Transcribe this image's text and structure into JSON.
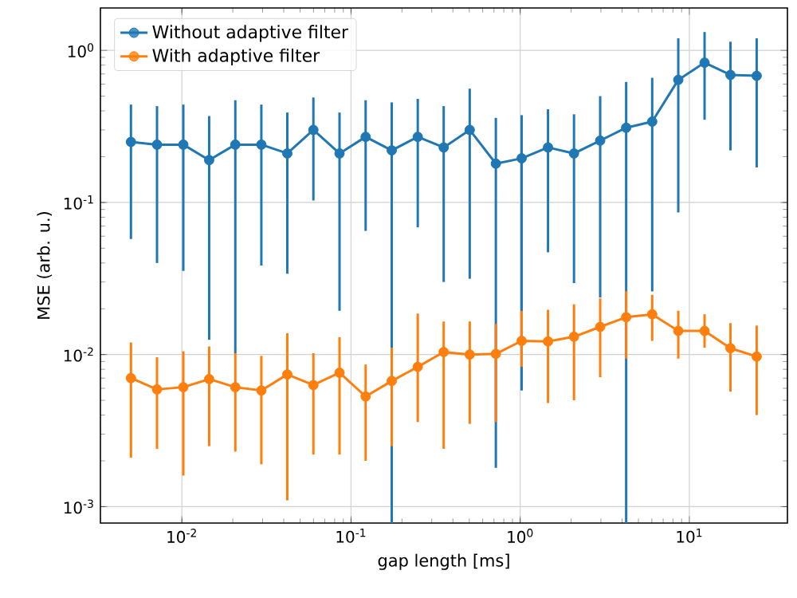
{
  "chart_data": {
    "type": "line",
    "xlabel": "gap length [ms]",
    "ylabel": "MSE (arb. u.)",
    "log": "xy",
    "grid": true,
    "legend": "top left",
    "marker": "circle",
    "line_style": "solid",
    "xlim": [
      0.0033,
      38
    ],
    "ylim": [
      0.00078,
      1.9
    ],
    "xticks": [
      {
        "value": 0.01,
        "label": "10$^{-2}$"
      },
      {
        "value": 0.1,
        "label": "10$^{-1}$"
      },
      {
        "value": 1,
        "label": "10$^{0}$"
      },
      {
        "value": 10,
        "label": "10$^{1}$"
      }
    ],
    "yticks": [
      {
        "value": 0.001,
        "label": "10$^{-3}$"
      },
      {
        "value": 0.01,
        "label": "10$^{-2}$"
      },
      {
        "value": 0.1,
        "label": "10$^{-1}$"
      },
      {
        "value": 1,
        "label": "10$^{0}$"
      }
    ],
    "x": [
      0.005,
      0.00713,
      0.0102,
      0.0145,
      0.0207,
      0.0295,
      0.042,
      0.0599,
      0.0855,
      0.122,
      0.174,
      0.248,
      0.353,
      0.503,
      0.718,
      1.02,
      1.46,
      2.08,
      2.97,
      4.23,
      6.03,
      8.6,
      12.3,
      17.5,
      25.0
    ],
    "series": [
      {
        "name": "Without adaptive filter",
        "color": "#1f77b4",
        "values": [
          0.25,
          0.24,
          0.24,
          0.19,
          0.24,
          0.24,
          0.21,
          0.3,
          0.21,
          0.27,
          0.22,
          0.27,
          0.23,
          0.3,
          0.18,
          0.195,
          0.23,
          0.21,
          0.255,
          0.31,
          0.34,
          0.64,
          0.83,
          0.69,
          0.68
        ],
        "errors": [
          [
            0.0575,
            0.44
          ],
          [
            0.04,
            0.43
          ],
          [
            0.0355,
            0.44
          ],
          [
            0.0125,
            0.37
          ],
          [
            0.0102,
            0.47
          ],
          [
            0.0385,
            0.44
          ],
          [
            0.034,
            0.39
          ],
          [
            0.103,
            0.49
          ],
          [
            0.0194,
            0.39
          ],
          [
            0.065,
            0.47
          ],
          [
            0.00078,
            0.455
          ],
          [
            0.0686,
            0.48
          ],
          [
            0.03,
            0.43
          ],
          [
            0.0315,
            0.56
          ],
          [
            0.0018,
            0.36
          ],
          [
            0.0058,
            0.375
          ],
          [
            0.047,
            0.41
          ],
          [
            0.0295,
            0.38
          ],
          [
            0.0237,
            0.5
          ],
          [
            0.00078,
            0.62
          ],
          [
            0.026,
            0.66
          ],
          [
            0.086,
            1.2
          ],
          [
            0.35,
            1.32
          ],
          [
            0.22,
            1.14
          ],
          [
            0.17,
            1.2
          ]
        ]
      },
      {
        "name": "With adaptive filter",
        "color": "#ff7f0e",
        "values": [
          0.007,
          0.0059,
          0.0061,
          0.0069,
          0.0061,
          0.0058,
          0.0074,
          0.0063,
          0.0076,
          0.0053,
          0.0067,
          0.0083,
          0.0104,
          0.01,
          0.0101,
          0.0123,
          0.0122,
          0.0131,
          0.0152,
          0.0176,
          0.0184,
          0.0143,
          0.0143,
          0.011,
          0.0097
        ],
        "errors": [
          [
            0.0021,
            0.012
          ],
          [
            0.0024,
            0.0096
          ],
          [
            0.0016,
            0.0105
          ],
          [
            0.0025,
            0.0113
          ],
          [
            0.0023,
            0.0102
          ],
          [
            0.0019,
            0.0098
          ],
          [
            0.0011,
            0.0138
          ],
          [
            0.0022,
            0.0102
          ],
          [
            0.0022,
            0.013
          ],
          [
            0.002,
            0.0086
          ],
          [
            0.0025,
            0.0111
          ],
          [
            0.0036,
            0.0186
          ],
          [
            0.0024,
            0.0165
          ],
          [
            0.0035,
            0.0165
          ],
          [
            0.0036,
            0.0159
          ],
          [
            0.0083,
            0.0194
          ],
          [
            0.0048,
            0.0197
          ],
          [
            0.005,
            0.0214
          ],
          [
            0.0071,
            0.0234
          ],
          [
            0.0094,
            0.0261
          ],
          [
            0.0123,
            0.0247
          ],
          [
            0.0094,
            0.0194
          ],
          [
            0.0111,
            0.0184
          ],
          [
            0.0057,
            0.0161
          ],
          [
            0.004,
            0.0155
          ]
        ]
      }
    ]
  }
}
